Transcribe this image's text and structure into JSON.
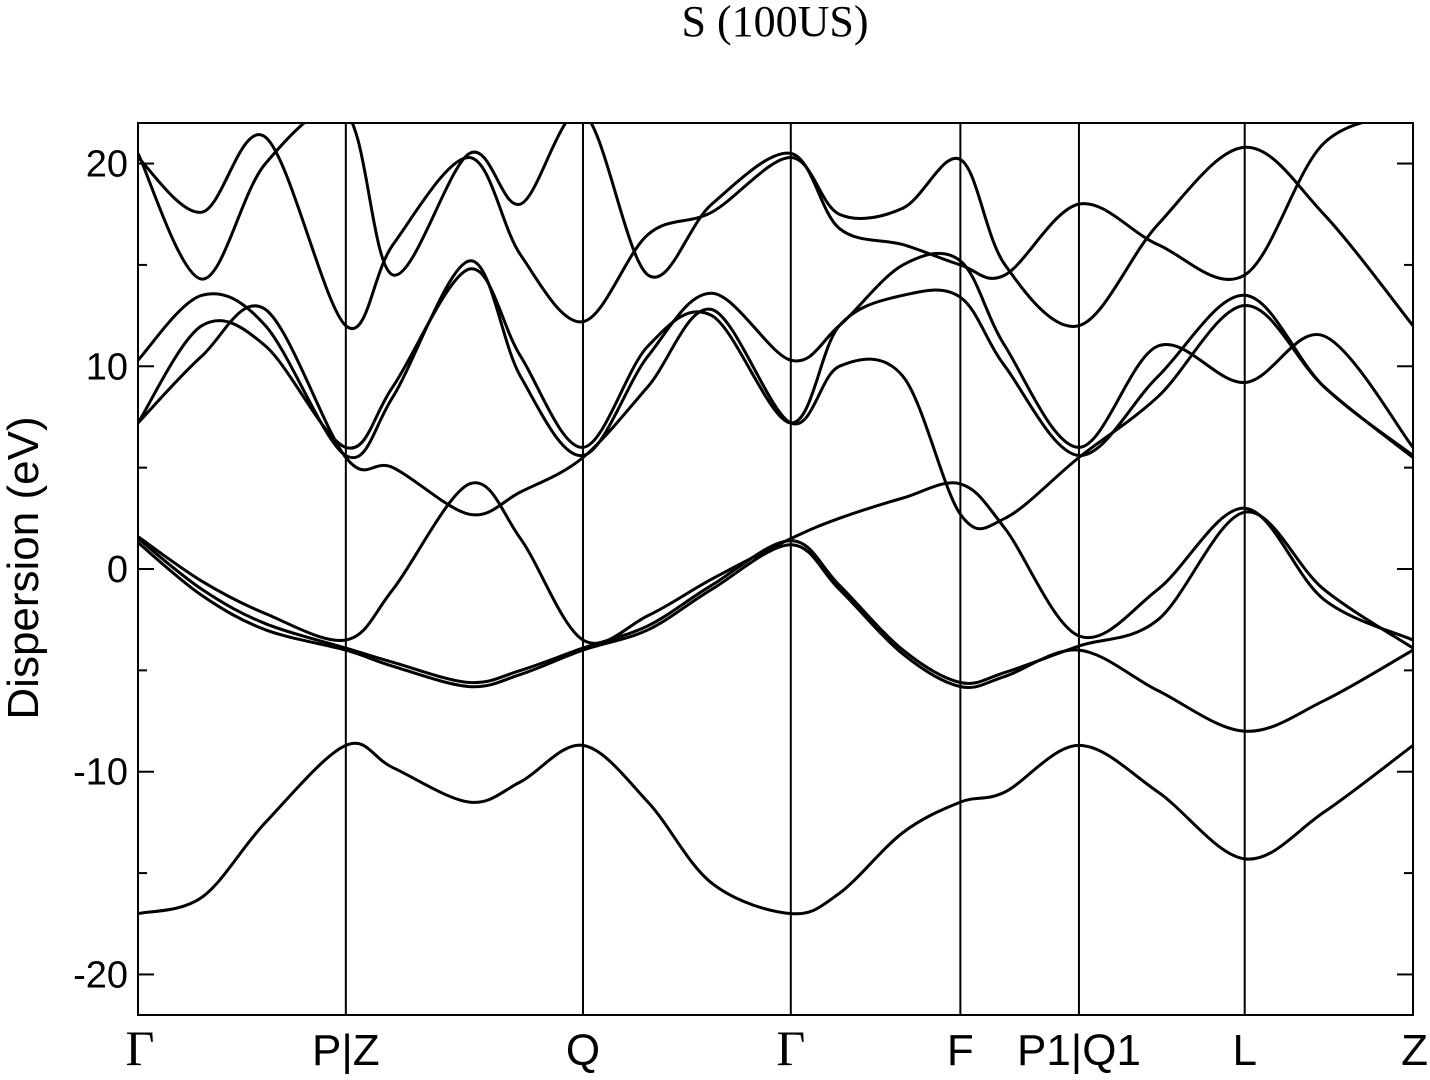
{
  "chart_data": {
    "type": "line",
    "title": "S (100US)",
    "xlabel": "",
    "ylabel": "Dispersion (eV)",
    "ylim": [
      -22,
      22
    ],
    "yticks": [
      -20,
      -10,
      0,
      10,
      20
    ],
    "x_range": [
      0,
      1
    ],
    "kpoints": [
      {
        "label": "Γ",
        "x": 0.0
      },
      {
        "label": "P|Z",
        "x": 0.163
      },
      {
        "label": "Q",
        "x": 0.349
      },
      {
        "label": "Γ",
        "x": 0.512
      },
      {
        "label": "F",
        "x": 0.645
      },
      {
        "label": "P1|Q1",
        "x": 0.738
      },
      {
        "label": "L",
        "x": 0.868
      },
      {
        "label": "Z",
        "x": 1.0
      }
    ],
    "grid": false,
    "legend": "none",
    "line_color": "#000000",
    "series": [
      {
        "x": [
          0,
          0.05,
          0.1,
          0.163,
          0.2,
          0.26,
          0.3,
          0.349,
          0.4,
          0.45,
          0.512,
          0.55,
          0.6,
          0.645,
          0.68,
          0.738,
          0.8,
          0.868,
          0.93,
          1.0
        ],
        "y": [
          -17.0,
          -16.2,
          -12.5,
          -8.7,
          -9.8,
          -11.5,
          -10.5,
          -8.7,
          -11.5,
          -15.5,
          -17.0,
          -16.0,
          -13.0,
          -11.5,
          -11.0,
          -8.7,
          -11.0,
          -14.3,
          -12.0,
          -8.7
        ]
      },
      {
        "x": [
          0,
          0.05,
          0.1,
          0.163,
          0.2,
          0.26,
          0.3,
          0.349,
          0.4,
          0.45,
          0.512,
          0.55,
          0.6,
          0.645,
          0.68,
          0.738,
          0.8,
          0.868,
          0.93,
          1.0
        ],
        "y": [
          1.3,
          -1.3,
          -3.0,
          -4.0,
          -4.8,
          -5.8,
          -5.2,
          -4.0,
          -3.0,
          -1.0,
          1.2,
          -1.0,
          -4.2,
          -5.8,
          -5.3,
          -4.0,
          -6.0,
          -8.0,
          -6.5,
          -4.0
        ]
      },
      {
        "x": [
          0,
          0.05,
          0.1,
          0.163,
          0.2,
          0.26,
          0.3,
          0.349,
          0.4,
          0.45,
          0.512,
          0.55,
          0.6,
          0.645,
          0.68,
          0.738,
          0.8,
          0.868,
          0.93,
          1.0
        ],
        "y": [
          1.5,
          -1.0,
          -2.7,
          -3.9,
          -4.6,
          -5.6,
          -5.0,
          -3.9,
          -2.8,
          -0.8,
          1.4,
          -0.8,
          -4.0,
          -5.6,
          -5.1,
          -3.8,
          -2.5,
          2.8,
          -1.0,
          -3.9
        ]
      },
      {
        "x": [
          0,
          0.05,
          0.1,
          0.163,
          0.2,
          0.26,
          0.3,
          0.349,
          0.4,
          0.45,
          0.512,
          0.55,
          0.6,
          0.645,
          0.68,
          0.738,
          0.8,
          0.868,
          0.93,
          1.0
        ],
        "y": [
          1.6,
          -0.6,
          -2.2,
          -3.5,
          -1.0,
          4.2,
          1.5,
          -3.5,
          -2.3,
          -0.5,
          1.5,
          2.5,
          3.5,
          4.2,
          2.0,
          -3.3,
          -1.0,
          3.0,
          -1.5,
          -3.5
        ]
      },
      {
        "x": [
          0,
          0.05,
          0.1,
          0.163,
          0.2,
          0.26,
          0.3,
          0.349,
          0.4,
          0.45,
          0.512,
          0.55,
          0.6,
          0.645,
          0.68,
          0.738,
          0.8,
          0.868,
          0.93,
          1.0
        ],
        "y": [
          7.2,
          10.5,
          12.8,
          5.5,
          5.0,
          2.7,
          3.8,
          5.5,
          9.0,
          12.8,
          7.2,
          10.0,
          9.5,
          2.7,
          2.5,
          5.5,
          8.5,
          13.0,
          9.0,
          5.5
        ]
      },
      {
        "x": [
          0,
          0.05,
          0.1,
          0.163,
          0.2,
          0.26,
          0.3,
          0.349,
          0.4,
          0.45,
          0.512,
          0.55,
          0.6,
          0.645,
          0.68,
          0.738,
          0.8,
          0.868,
          0.93,
          1.0
        ],
        "y": [
          7.2,
          12.0,
          11.0,
          6.0,
          9.0,
          14.8,
          10.5,
          6.0,
          11.0,
          12.5,
          7.2,
          12.0,
          13.5,
          13.4,
          10.0,
          5.6,
          9.5,
          13.5,
          9.0,
          5.6
        ]
      },
      {
        "x": [
          0,
          0.05,
          0.1,
          0.163,
          0.2,
          0.26,
          0.3,
          0.349,
          0.4,
          0.45,
          0.512,
          0.55,
          0.6,
          0.645,
          0.68,
          0.738,
          0.8,
          0.868,
          0.93,
          1.0
        ],
        "y": [
          10.3,
          13.5,
          12.0,
          5.6,
          8.5,
          15.2,
          9.5,
          5.6,
          10.5,
          13.6,
          10.3,
          12.0,
          15.0,
          15.2,
          11.0,
          6.0,
          11.0,
          9.2,
          11.5,
          6.0
        ]
      },
      {
        "x": [
          0,
          0.05,
          0.1,
          0.163,
          0.2,
          0.26,
          0.3,
          0.349,
          0.4,
          0.45,
          0.512,
          0.55,
          0.6,
          0.645,
          0.68,
          0.738,
          0.8,
          0.868,
          0.93,
          1.0
        ],
        "y": [
          20.3,
          17.6,
          21.3,
          12.0,
          16.0,
          20.3,
          15.5,
          12.2,
          16.5,
          17.6,
          20.3,
          17.5,
          17.8,
          20.2,
          15.0,
          12.0,
          17.0,
          20.8,
          17.5,
          12.0
        ]
      },
      {
        "x": [
          0,
          0.05,
          0.1,
          0.163,
          0.2,
          0.26,
          0.3,
          0.349,
          0.4,
          0.45,
          0.512,
          0.55,
          0.6,
          0.645,
          0.68,
          0.738,
          0.8,
          0.868,
          0.93,
          1.0
        ],
        "y": [
          20.5,
          14.3,
          20.0,
          22.5,
          14.5,
          20.5,
          18.0,
          22.5,
          14.5,
          18.0,
          20.5,
          16.8,
          16.0,
          15.0,
          14.5,
          18.0,
          16.0,
          14.5,
          21.0,
          22.5
        ]
      }
    ]
  }
}
